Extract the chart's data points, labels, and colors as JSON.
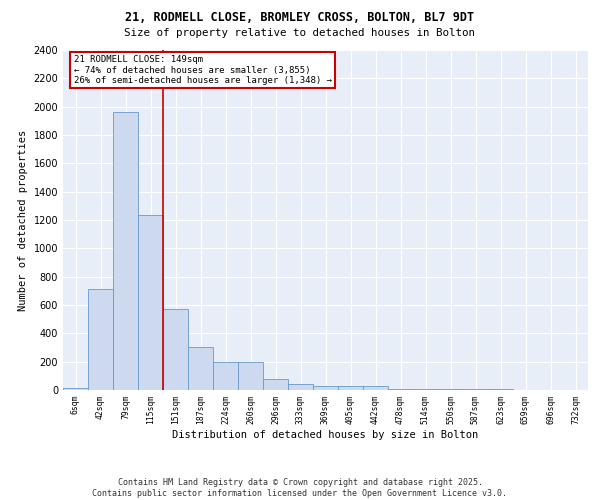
{
  "title_line1": "21, RODMELL CLOSE, BROMLEY CROSS, BOLTON, BL7 9DT",
  "title_line2": "Size of property relative to detached houses in Bolton",
  "xlabel": "Distribution of detached houses by size in Bolton",
  "ylabel": "Number of detached properties",
  "categories": [
    "6sqm",
    "42sqm",
    "79sqm",
    "115sqm",
    "151sqm",
    "187sqm",
    "224sqm",
    "260sqm",
    "296sqm",
    "333sqm",
    "369sqm",
    "405sqm",
    "442sqm",
    "478sqm",
    "514sqm",
    "550sqm",
    "587sqm",
    "623sqm",
    "659sqm",
    "696sqm",
    "732sqm"
  ],
  "values": [
    15,
    710,
    1960,
    1235,
    575,
    305,
    200,
    200,
    80,
    45,
    30,
    30,
    25,
    10,
    5,
    5,
    5,
    5,
    3,
    3,
    3
  ],
  "bar_color": "#ccd9ee",
  "bar_edge_color": "#6699cc",
  "annotation_line1": "21 RODMELL CLOSE: 149sqm",
  "annotation_line2": "← 74% of detached houses are smaller (3,855)",
  "annotation_line3": "26% of semi-detached houses are larger (1,348) →",
  "annotation_box_color": "#ffffff",
  "annotation_box_edge": "#cc0000",
  "background_color": "#e8eef8",
  "grid_color": "#ffffff",
  "ylim": [
    0,
    2400
  ],
  "yticks": [
    0,
    200,
    400,
    600,
    800,
    1000,
    1200,
    1400,
    1600,
    1800,
    2000,
    2200,
    2400
  ],
  "redline_index": 3.5,
  "footer_line1": "Contains HM Land Registry data © Crown copyright and database right 2025.",
  "footer_line2": "Contains public sector information licensed under the Open Government Licence v3.0."
}
